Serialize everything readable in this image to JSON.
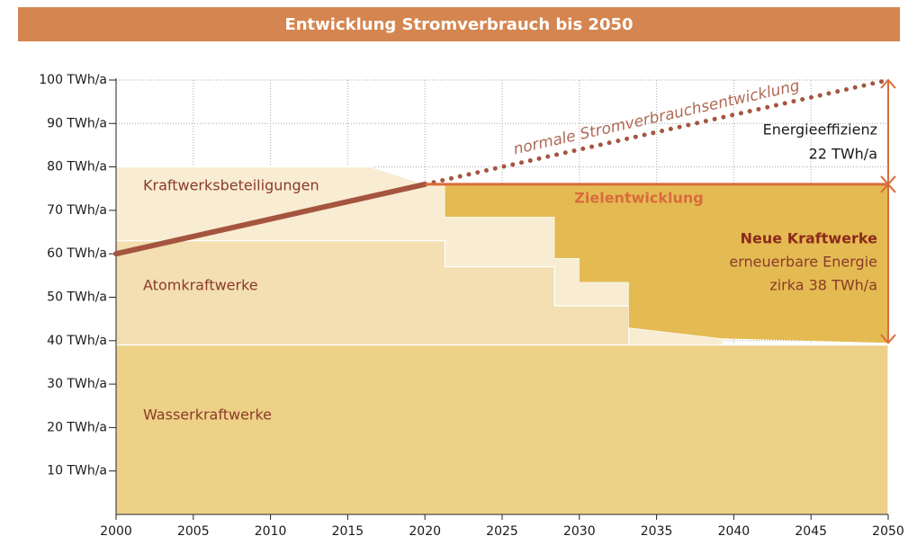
{
  "chart_data": {
    "type": "area",
    "title": "Entwicklung Stromverbrauch bis 2050",
    "xlim": [
      2000,
      2050
    ],
    "ylim": [
      0,
      100
    ],
    "xticks": [
      2000,
      2005,
      2010,
      2015,
      2020,
      2025,
      2030,
      2035,
      2040,
      2045,
      2050
    ],
    "yticks": [
      {
        "value": 10,
        "label": "10 TWh/a"
      },
      {
        "value": 20,
        "label": "20 TWh/a"
      },
      {
        "value": 30,
        "label": "30 TWh/a"
      },
      {
        "value": 40,
        "label": "40 TWh/a"
      },
      {
        "value": 50,
        "label": "50 TWh/a"
      },
      {
        "value": 60,
        "label": "60 TWh/a"
      },
      {
        "value": 70,
        "label": "70 TWh/a"
      },
      {
        "value": 80,
        "label": "80 TWh/a"
      },
      {
        "value": 90,
        "label": "90 TWh/a"
      },
      {
        "value": 100,
        "label": "100 TWh/a"
      }
    ],
    "grid": true,
    "areas": [
      {
        "name": "Kraftwerksbeteiligungen",
        "color": "#f8ecd2",
        "x": [
          2000,
          2016.5,
          2020,
          2021.3,
          2021.3,
          2028.4,
          2028.4,
          2030,
          2030,
          2033.2,
          2033.2,
          2039.3,
          2039.3
        ],
        "upper": [
          80,
          80,
          76,
          76,
          68.5,
          68.5,
          59,
          59,
          53.5,
          53.5,
          43,
          40.5,
          39
        ]
      },
      {
        "name": "Atomkraftwerke",
        "color": "#f3dfb2",
        "x": [
          2000,
          2021.3,
          2021.3,
          2028.4,
          2028.4,
          2033.2,
          2033.2
        ],
        "upper": [
          63,
          63,
          57,
          57,
          48,
          48,
          39
        ]
      },
      {
        "name": "Wasserkraftwerke",
        "color": "#edd187",
        "x": [
          2000,
          2050
        ],
        "upper": [
          39,
          39
        ]
      }
    ],
    "new_plants": {
      "name": "Neue Kraftwerke",
      "sub1": "erneuerbare Energie",
      "sub2": "zirka 38 TWh/a",
      "color": "#e4bb53",
      "x": [
        2021.3,
        2028.4,
        2028.4,
        2030,
        2030,
        2033.2,
        2033.2,
        2039.3,
        2050
      ],
      "upper": [
        76,
        76,
        76,
        76,
        76,
        76,
        76,
        76,
        76
      ],
      "lower": [
        68.5,
        68.5,
        59,
        59,
        53.5,
        53.5,
        43,
        40.5,
        39.5
      ]
    },
    "lines": [
      {
        "x": [
          2000,
          2020
        ],
        "y": [
          60,
          76
        ],
        "color": "#a5553f",
        "dotted": false
      },
      {
        "name": "normale Stromverbrauchsentwicklung",
        "x": [
          2020,
          2050
        ],
        "y": [
          76,
          100
        ],
        "color": "#a5553f",
        "dotted": true
      },
      {
        "name": "Zielentwicklung",
        "x": [
          2020,
          2050
        ],
        "y": [
          76,
          76
        ],
        "color": "#d96b3c",
        "dotted": false
      }
    ],
    "efficiency": {
      "text1": "Energieeffizienz",
      "text2": "22 TWh/a"
    }
  }
}
